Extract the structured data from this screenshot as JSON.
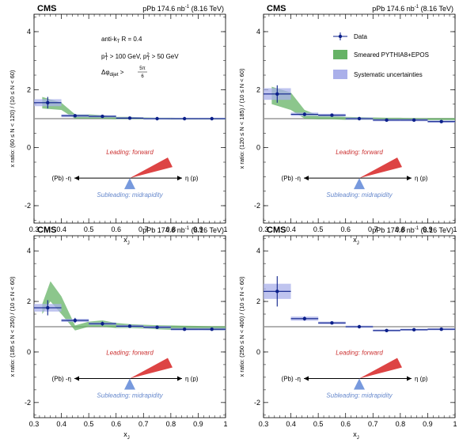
{
  "colors": {
    "data": "#0b1f8a",
    "model_band": "#66b366",
    "syst_band": "#aab0ea",
    "forward": "#dd4444",
    "midrapidity": "#7799dd",
    "unity_line": "#999999"
  },
  "header": {
    "experiment": "CMS",
    "lumi_text": "pPb 174.6 nb",
    "lumi_sup": "-1",
    "energy": "(8.16 TeV)"
  },
  "jet_info": {
    "algo": "anti-k  R = 0.4",
    "pt1": "p  > 100 GeV, p  > 50 GeV",
    "dphi": "Δφ     >"
  },
  "legend": {
    "data": "Data",
    "model": "Smeared PYTHIA8+EPOS",
    "syst": "Systematic uncertainties"
  },
  "diagram": {
    "leading": "Leading: forward",
    "subleading": "Subleading: midrapidity",
    "left": "(Pb) -η",
    "right": "η (p)"
  },
  "chart_data": [
    {
      "type": "scatter",
      "xlabel": "x",
      "ylabel": "x  ratio: (60 ≤ N  < 120) / (10 ≤ N  < 60)",
      "xlim": [
        0.3,
        1.0
      ],
      "ylim": [
        -2.6,
        4.6
      ],
      "xticks": [
        "0.3",
        "0.4",
        "0.5",
        "0.6",
        "0.7",
        "0.8",
        "0.9",
        "1"
      ],
      "yticks": [
        "-2",
        "0",
        "2",
        "4"
      ],
      "x": [
        0.35,
        0.45,
        0.55,
        0.65,
        0.75,
        0.85,
        0.95
      ],
      "y": [
        1.55,
        1.1,
        1.08,
        1.02,
        1.0,
        1.0,
        1.0
      ],
      "stat_err": [
        0.2,
        0.05,
        0.04,
        0.03,
        0.03,
        0.03,
        0.03
      ],
      "syst_err": [
        0.12,
        0.05,
        0.04,
        0.03,
        0.03,
        0.03,
        0.03
      ],
      "model_x": [
        0.33,
        0.4,
        0.45,
        0.5,
        0.55,
        0.6,
        0.65,
        0.7,
        0.75,
        0.8,
        0.85,
        0.9,
        0.95,
        1.0
      ],
      "model_lo": [
        1.35,
        1.3,
        1.0,
        1.0,
        1.0,
        0.98,
        0.98,
        0.98,
        0.98,
        0.97,
        0.97,
        0.97,
        0.97,
        0.97
      ],
      "model_hi": [
        1.75,
        1.55,
        1.15,
        1.15,
        1.12,
        1.06,
        1.06,
        1.04,
        1.03,
        1.03,
        1.02,
        1.02,
        1.02,
        1.02
      ]
    },
    {
      "type": "scatter",
      "xlabel": "x",
      "ylabel": "x  ratio: (120 ≤ N  < 185) / (10 ≤ N  < 60)",
      "xlim": [
        0.3,
        1.0
      ],
      "ylim": [
        -2.6,
        4.6
      ],
      "xticks": [
        "0.3",
        "0.4",
        "0.5",
        "0.6",
        "0.7",
        "0.8",
        "0.9",
        "1"
      ],
      "yticks": [
        "-2",
        "0",
        "2",
        "4"
      ],
      "x": [
        0.35,
        0.45,
        0.55,
        0.65,
        0.75,
        0.85,
        0.95
      ],
      "y": [
        1.85,
        1.15,
        1.12,
        1.0,
        0.95,
        0.95,
        0.9
      ],
      "stat_err": [
        0.3,
        0.06,
        0.05,
        0.04,
        0.04,
        0.04,
        0.04
      ],
      "syst_err": [
        0.2,
        0.06,
        0.05,
        0.04,
        0.04,
        0.04,
        0.04
      ],
      "model_x": [
        0.33,
        0.4,
        0.45,
        0.5,
        0.55,
        0.6,
        0.65,
        0.7,
        0.75,
        0.8,
        0.85,
        0.9,
        0.95,
        1.0
      ],
      "model_lo": [
        1.5,
        1.3,
        1.0,
        0.98,
        0.98,
        0.96,
        0.96,
        0.96,
        0.95,
        0.95,
        0.95,
        0.95,
        0.95,
        0.95
      ],
      "model_hi": [
        2.1,
        1.9,
        1.3,
        1.12,
        1.1,
        1.06,
        1.05,
        1.04,
        1.03,
        1.03,
        1.02,
        1.02,
        1.02,
        1.02
      ]
    },
    {
      "type": "scatter",
      "xlabel": "x",
      "ylabel": "x  ratio: (185 ≤ N  < 250) / (10 ≤ N  < 60)",
      "xlim": [
        0.3,
        1.0
      ],
      "ylim": [
        -2.6,
        4.6
      ],
      "xticks": [
        "0.3",
        "0.4",
        "0.5",
        "0.6",
        "0.7",
        "0.8",
        "0.9",
        "1"
      ],
      "yticks": [
        "-2",
        "0",
        "2",
        "4"
      ],
      "x": [
        0.35,
        0.45,
        0.55,
        0.65,
        0.75,
        0.85,
        0.95
      ],
      "y": [
        1.75,
        1.25,
        1.12,
        1.02,
        0.98,
        0.9,
        0.9
      ],
      "stat_err": [
        0.3,
        0.1,
        0.08,
        0.06,
        0.06,
        0.06,
        0.06
      ],
      "syst_err": [
        0.15,
        0.06,
        0.05,
        0.05,
        0.05,
        0.05,
        0.05
      ],
      "model_x": [
        0.33,
        0.36,
        0.4,
        0.45,
        0.5,
        0.55,
        0.6,
        0.65,
        0.7,
        0.75,
        0.8,
        0.85,
        0.9,
        0.95,
        1.0
      ],
      "model_lo": [
        1.5,
        2.0,
        1.5,
        0.85,
        1.0,
        1.0,
        0.95,
        0.95,
        0.93,
        0.9,
        0.88,
        0.88,
        0.88,
        0.86,
        0.86
      ],
      "model_hi": [
        1.9,
        2.8,
        2.2,
        1.05,
        1.2,
        1.25,
        1.15,
        1.1,
        1.08,
        1.06,
        1.05,
        1.04,
        1.03,
        1.02,
        1.02
      ]
    },
    {
      "type": "scatter",
      "xlabel": "x",
      "ylabel": "x  ratio: (250 ≤ N  < 400) / (10 ≤ N  < 60)",
      "xlim": [
        0.3,
        1.0
      ],
      "ylim": [
        -2.6,
        4.6
      ],
      "xticks": [
        "0.3",
        "0.4",
        "0.5",
        "0.6",
        "0.7",
        "0.8",
        "0.9",
        "1"
      ],
      "yticks": [
        "-2",
        "0",
        "2",
        "4"
      ],
      "x": [
        0.35,
        0.45,
        0.55,
        0.65,
        0.75,
        0.85,
        0.95
      ],
      "y": [
        2.4,
        1.32,
        1.15,
        1.0,
        0.85,
        0.88,
        0.9
      ],
      "stat_err": [
        0.6,
        0.08,
        0.06,
        0.05,
        0.05,
        0.05,
        0.05
      ],
      "syst_err": [
        0.3,
        0.08,
        0.05,
        0.04,
        0.04,
        0.04,
        0.04
      ],
      "model_x": [],
      "model_lo": [],
      "model_hi": []
    }
  ]
}
